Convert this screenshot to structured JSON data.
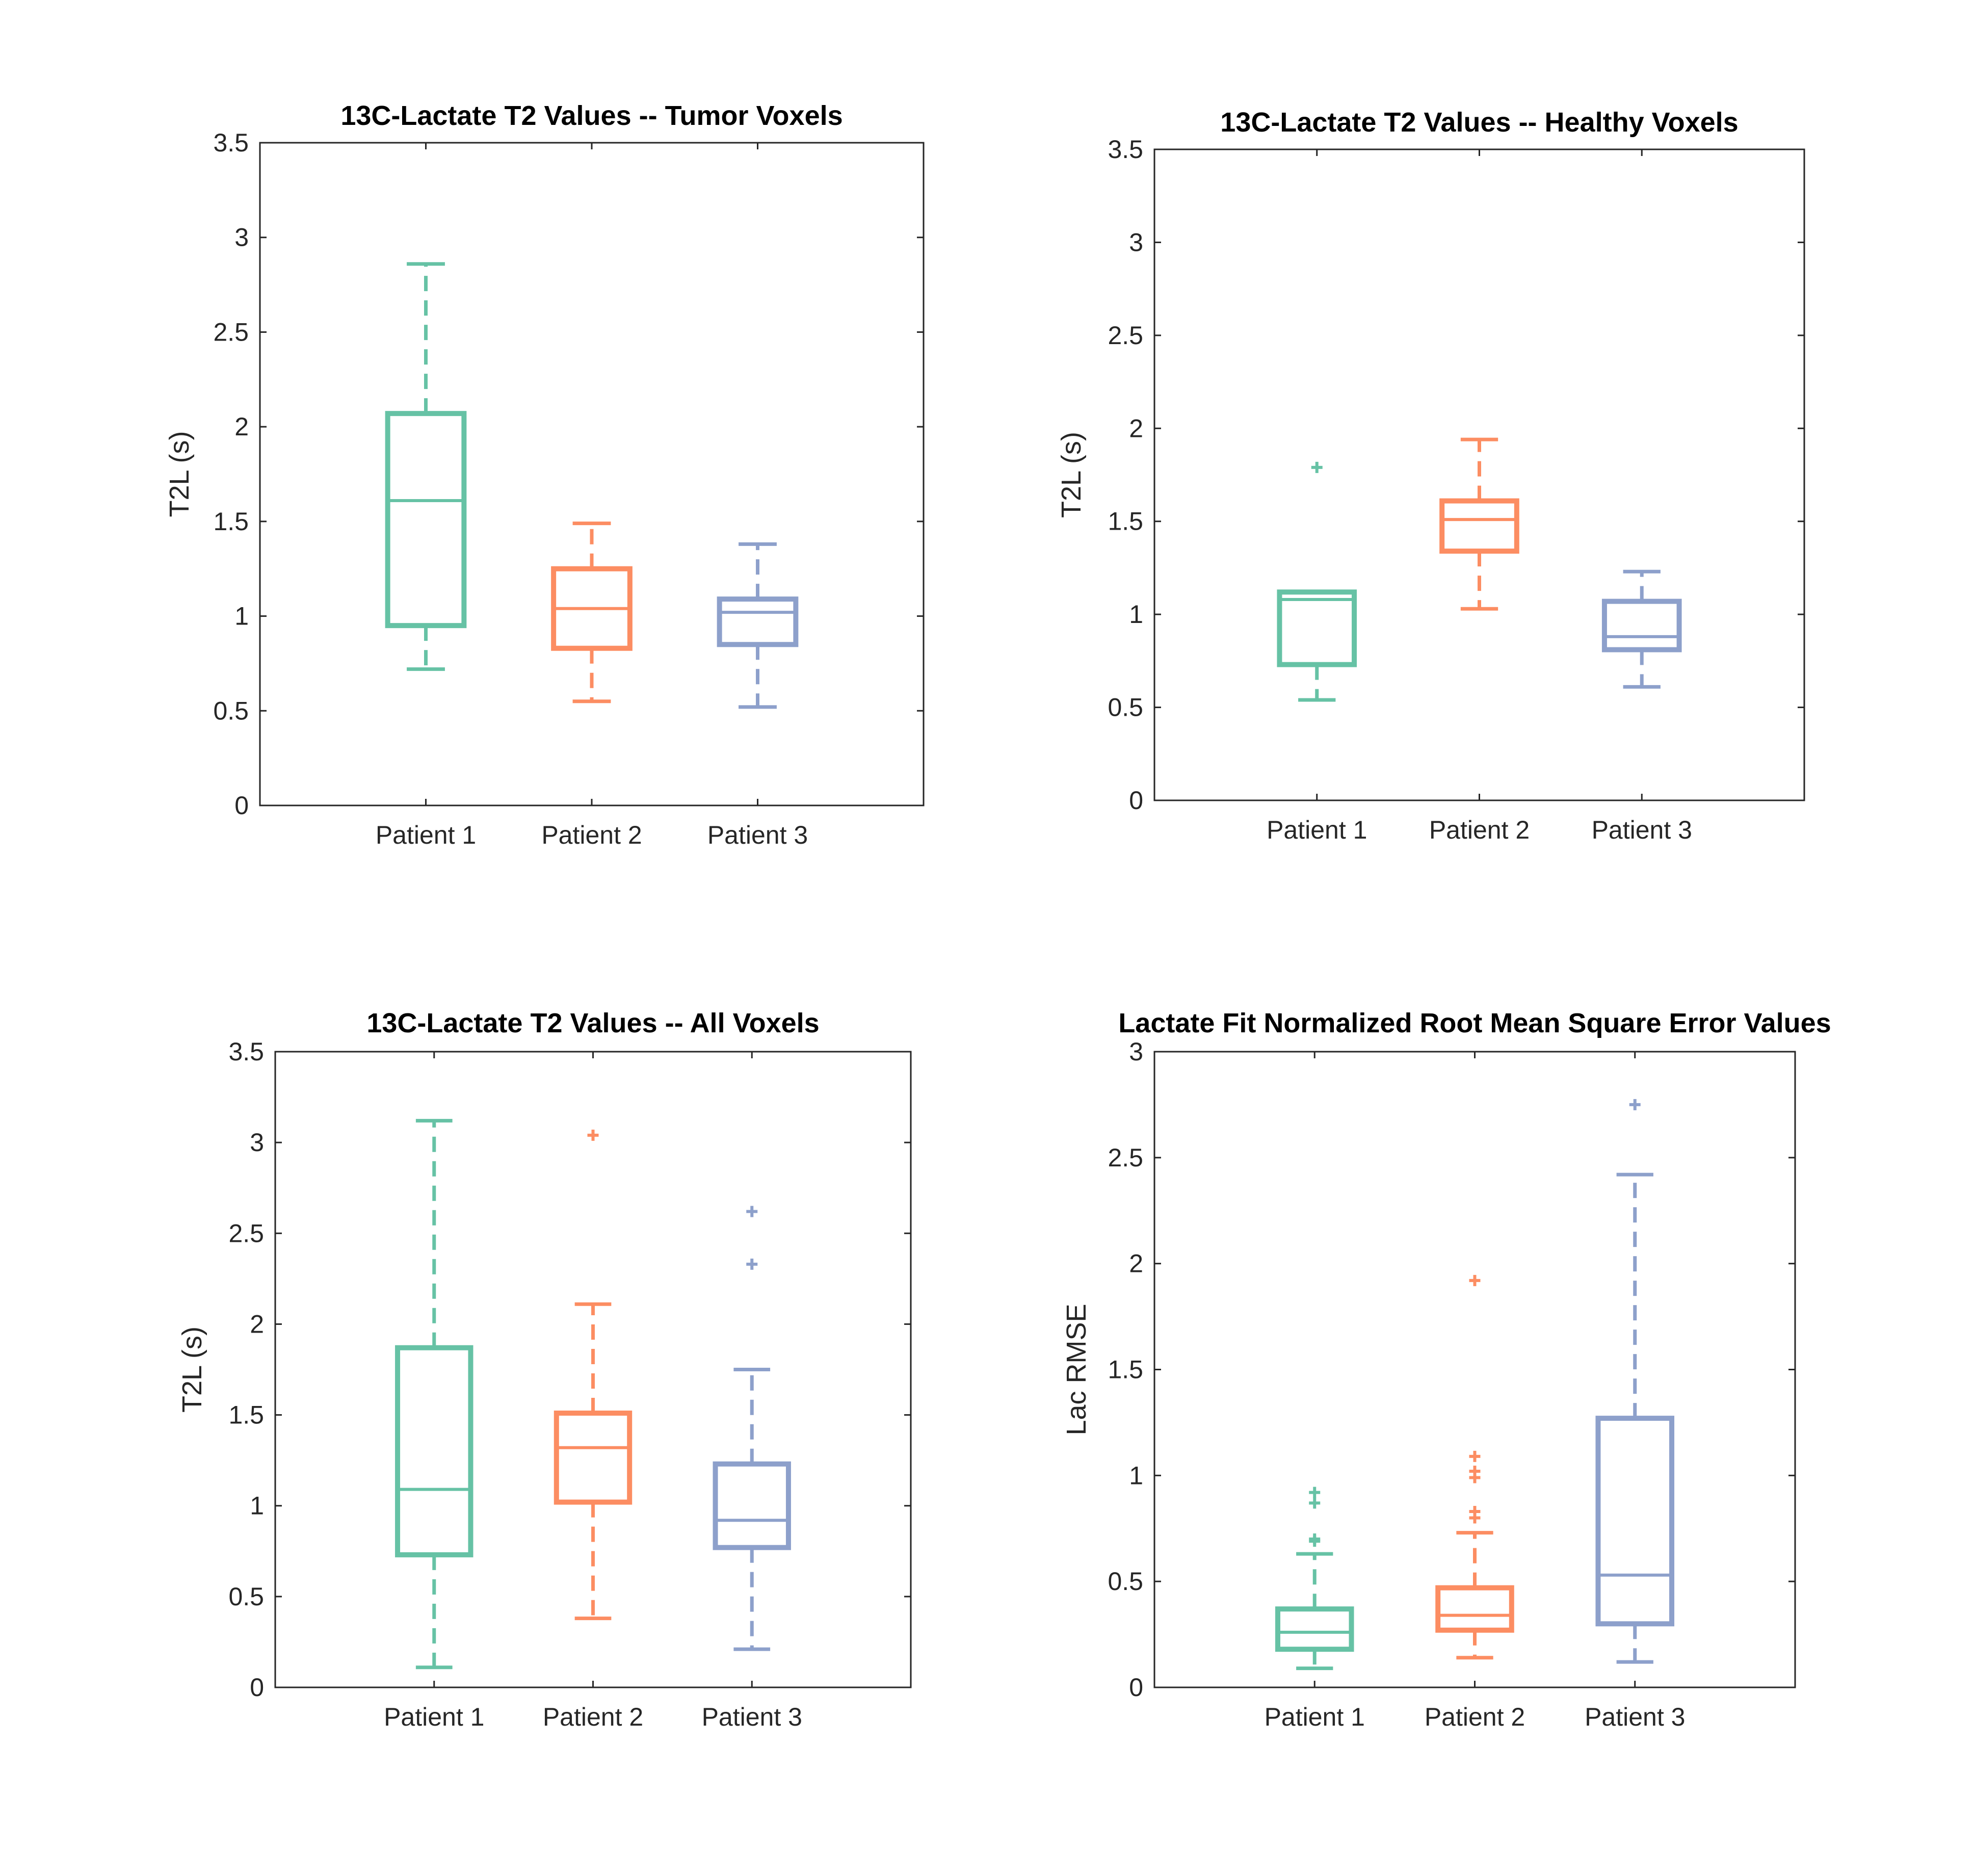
{
  "figure": {
    "background": "#ffffff",
    "colors": {
      "Patient 1": "#66c2a5",
      "Patient 2": "#fc8d62",
      "Patient 3": "#8da0cb"
    }
  },
  "chart_data": [
    {
      "type": "boxplot",
      "title": "13C-Lactate T2 Values -- Tumor Voxels",
      "xlabel": "",
      "ylabel": "T2L (s)",
      "ylim": [
        0,
        3.5
      ],
      "yticks": [
        0,
        0.5,
        1,
        1.5,
        2,
        2.5,
        3,
        3.5
      ],
      "ytick_labels": [
        "0",
        "0.5",
        "1",
        "1.5",
        "2",
        "2.5",
        "3",
        "3.5"
      ],
      "categories": [
        "Patient 1",
        "Patient 2",
        "Patient 3"
      ],
      "boxes": [
        {
          "name": "Patient 1",
          "whisker_low": 0.72,
          "q1": 0.95,
          "median": 1.61,
          "q3": 2.07,
          "whisker_high": 2.86,
          "outliers": []
        },
        {
          "name": "Patient 2",
          "whisker_low": 0.55,
          "q1": 0.83,
          "median": 1.04,
          "q3": 1.25,
          "whisker_high": 1.49,
          "outliers": []
        },
        {
          "name": "Patient 3",
          "whisker_low": 0.52,
          "q1": 0.85,
          "median": 1.02,
          "q3": 1.09,
          "whisker_high": 1.38,
          "outliers": []
        }
      ]
    },
    {
      "type": "boxplot",
      "title": "13C-Lactate T2 Values -- Healthy Voxels",
      "xlabel": "",
      "ylabel": "T2L (s)",
      "ylim": [
        0,
        3.5
      ],
      "yticks": [
        0,
        0.5,
        1,
        1.5,
        2,
        2.5,
        3,
        3.5
      ],
      "ytick_labels": [
        "0",
        "0.5",
        "1",
        "1.5",
        "2",
        "2.5",
        "3",
        "3.5"
      ],
      "categories": [
        "Patient 1",
        "Patient 2",
        "Patient 3"
      ],
      "boxes": [
        {
          "name": "Patient 1",
          "whisker_low": 0.54,
          "q1": 0.73,
          "median": 1.08,
          "q3": 1.12,
          "whisker_high": 1.12,
          "outliers": [
            1.79
          ]
        },
        {
          "name": "Patient 2",
          "whisker_low": 1.03,
          "q1": 1.34,
          "median": 1.51,
          "q3": 1.61,
          "whisker_high": 1.94,
          "outliers": []
        },
        {
          "name": "Patient 3",
          "whisker_low": 0.61,
          "q1": 0.81,
          "median": 0.88,
          "q3": 1.07,
          "whisker_high": 1.23,
          "outliers": []
        }
      ]
    },
    {
      "type": "boxplot",
      "title": "13C-Lactate T2 Values -- All Voxels",
      "xlabel": "",
      "ylabel": "T2L (s)",
      "ylim": [
        0,
        3.5
      ],
      "yticks": [
        0,
        0.5,
        1,
        1.5,
        2,
        2.5,
        3,
        3.5
      ],
      "ytick_labels": [
        "0",
        "0.5",
        "1",
        "1.5",
        "2",
        "2.5",
        "3",
        "3.5"
      ],
      "categories": [
        "Patient 1",
        "Patient 2",
        "Patient 3"
      ],
      "boxes": [
        {
          "name": "Patient 1",
          "whisker_low": 0.11,
          "q1": 0.73,
          "median": 1.09,
          "q3": 1.87,
          "whisker_high": 3.12,
          "outliers": []
        },
        {
          "name": "Patient 2",
          "whisker_low": 0.38,
          "q1": 1.02,
          "median": 1.32,
          "q3": 1.51,
          "whisker_high": 2.11,
          "outliers": [
            3.04
          ]
        },
        {
          "name": "Patient 3",
          "whisker_low": 0.21,
          "q1": 0.77,
          "median": 0.92,
          "q3": 1.23,
          "whisker_high": 1.75,
          "outliers": [
            2.33,
            2.62
          ]
        }
      ]
    },
    {
      "type": "boxplot",
      "title": "Lactate Fit Normalized Root Mean Square Error Values",
      "xlabel": "",
      "ylabel": "Lac RMSE",
      "ylim": [
        0,
        3
      ],
      "yticks": [
        0,
        0.5,
        1,
        1.5,
        2,
        2.5,
        3
      ],
      "ytick_labels": [
        "0",
        "0.5",
        "1",
        "1.5",
        "2",
        "2.5",
        "3"
      ],
      "categories": [
        "Patient 1",
        "Patient 2",
        "Patient 3"
      ],
      "boxes": [
        {
          "name": "Patient 1",
          "whisker_low": 0.09,
          "q1": 0.18,
          "median": 0.26,
          "q3": 0.37,
          "whisker_high": 0.63,
          "outliers": [
            0.69,
            0.7,
            0.87,
            0.92
          ]
        },
        {
          "name": "Patient 2",
          "whisker_low": 0.14,
          "q1": 0.27,
          "median": 0.34,
          "q3": 0.47,
          "whisker_high": 0.73,
          "outliers": [
            0.8,
            0.83,
            0.99,
            1.02,
            1.09,
            1.92
          ]
        },
        {
          "name": "Patient 3",
          "whisker_low": 0.12,
          "q1": 0.3,
          "median": 0.53,
          "q3": 1.27,
          "whisker_high": 2.42,
          "outliers": [
            2.75
          ]
        }
      ]
    }
  ]
}
